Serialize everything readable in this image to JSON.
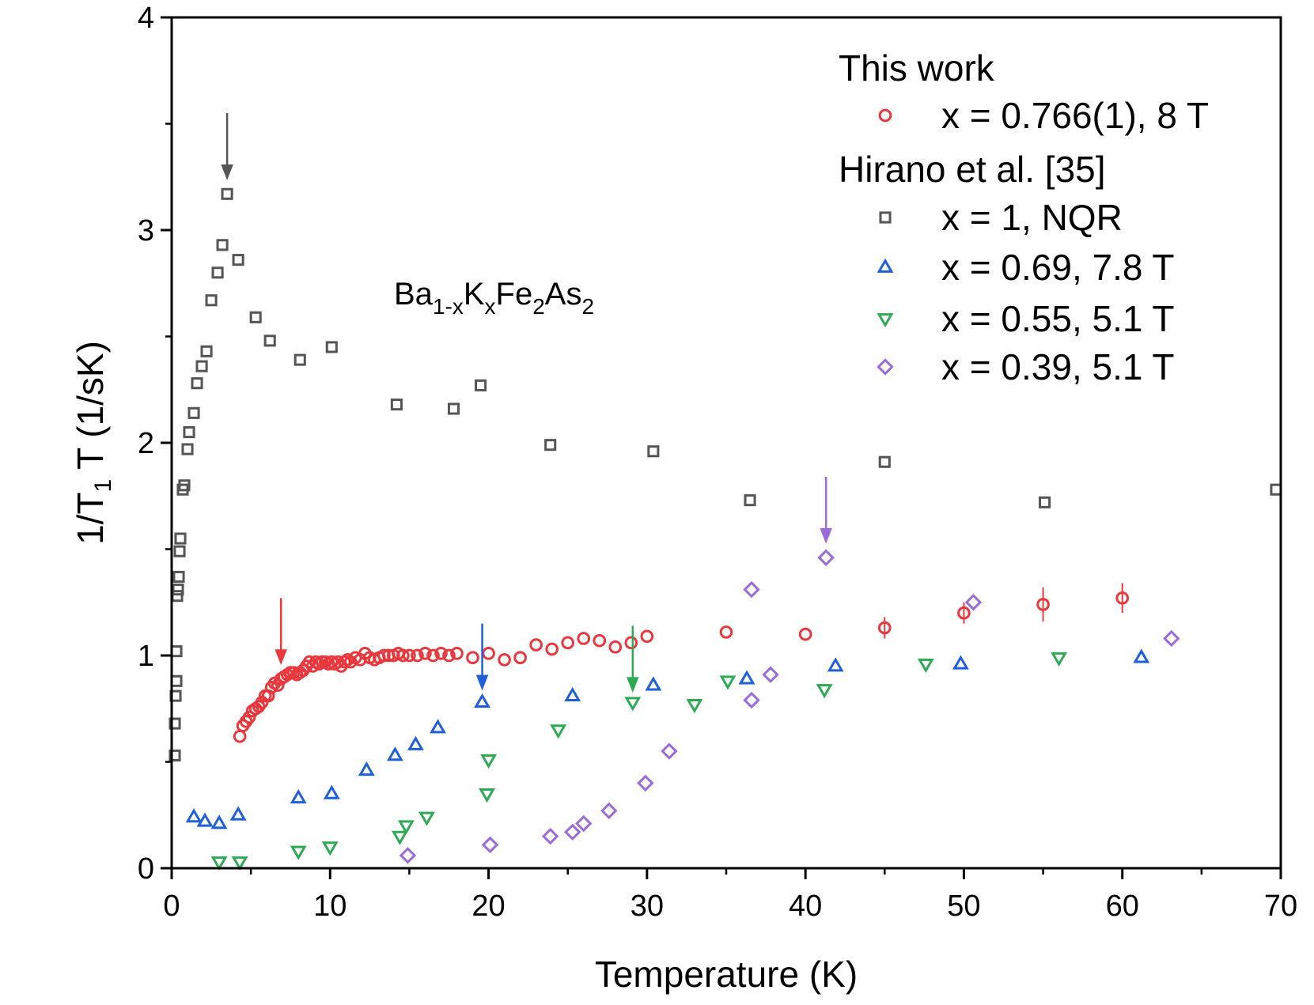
{
  "chart_data": {
    "type": "scatter",
    "xlabel": "Temperature (K)",
    "ylabel_parts": [
      "1/T",
      "1",
      " T (1/sK)"
    ],
    "xlim": [
      0,
      70
    ],
    "ylim": [
      0,
      4
    ],
    "xticks": [
      0,
      10,
      20,
      30,
      40,
      50,
      60,
      70
    ],
    "yticks": [
      0,
      1,
      2,
      3,
      4
    ],
    "grid": false,
    "legend_placement": "top-right",
    "legend": {
      "group1_title": "This work",
      "group2_title": "Hirano et al. [35]"
    },
    "annotation_parts": [
      {
        "t": "Ba",
        "sub": false
      },
      {
        "t": "1-x",
        "sub": true
      },
      {
        "t": "K",
        "sub": false
      },
      {
        "t": "x",
        "sub": true
      },
      {
        "t": "Fe",
        "sub": false
      },
      {
        "t": "2",
        "sub": true
      },
      {
        "t": "As",
        "sub": false
      },
      {
        "t": "2",
        "sub": true
      }
    ],
    "series": [
      {
        "name": "x = 0.766(1), 8 T",
        "marker": "circle",
        "color": "#e8383d",
        "points": [
          [
            4.3,
            0.62
          ],
          [
            4.5,
            0.67
          ],
          [
            4.7,
            0.69
          ],
          [
            4.9,
            0.71
          ],
          [
            5.1,
            0.74
          ],
          [
            5.3,
            0.75
          ],
          [
            5.5,
            0.76
          ],
          [
            5.7,
            0.78
          ],
          [
            5.9,
            0.81
          ],
          [
            6.1,
            0.81
          ],
          [
            6.3,
            0.85
          ],
          [
            6.5,
            0.87
          ],
          [
            6.7,
            0.86
          ],
          [
            6.9,
            0.89
          ],
          [
            7.1,
            0.9
          ],
          [
            7.3,
            0.91
          ],
          [
            7.5,
            0.92
          ],
          [
            7.7,
            0.92
          ],
          [
            7.9,
            0.91
          ],
          [
            8.1,
            0.92
          ],
          [
            8.3,
            0.93
          ],
          [
            8.5,
            0.95
          ],
          [
            8.7,
            0.97
          ],
          [
            8.9,
            0.95
          ],
          [
            9.1,
            0.97
          ],
          [
            9.3,
            0.96
          ],
          [
            9.5,
            0.97
          ],
          [
            9.7,
            0.97
          ],
          [
            9.9,
            0.96
          ],
          [
            10.1,
            0.97
          ],
          [
            10.3,
            0.96
          ],
          [
            10.5,
            0.97
          ],
          [
            10.7,
            0.95
          ],
          [
            10.9,
            0.97
          ],
          [
            11.1,
            0.98
          ],
          [
            11.3,
            0.97
          ],
          [
            11.6,
            0.99
          ],
          [
            11.9,
            0.98
          ],
          [
            12.2,
            1.01
          ],
          [
            12.5,
            0.99
          ],
          [
            12.8,
            0.98
          ],
          [
            13.1,
            0.99
          ],
          [
            13.4,
            1.0
          ],
          [
            13.7,
            1.0
          ],
          [
            14.0,
            1.0
          ],
          [
            14.3,
            1.01
          ],
          [
            14.6,
            1.0
          ],
          [
            15.0,
            1.0
          ],
          [
            15.5,
            1.0
          ],
          [
            16.0,
            1.01
          ],
          [
            16.5,
            1.0
          ],
          [
            17.0,
            1.01
          ],
          [
            17.5,
            1.0
          ],
          [
            18.0,
            1.01
          ],
          [
            19.0,
            0.99
          ],
          [
            20.0,
            1.01
          ],
          [
            21.0,
            0.98
          ],
          [
            22.0,
            0.99
          ],
          [
            23.0,
            1.05
          ],
          [
            24.0,
            1.03
          ],
          [
            25.0,
            1.06
          ],
          [
            26.0,
            1.08
          ],
          [
            27.0,
            1.07
          ],
          [
            28.0,
            1.04
          ],
          [
            29.0,
            1.06
          ],
          [
            30.0,
            1.09
          ],
          [
            35.0,
            1.11
          ],
          [
            40.0,
            1.1
          ],
          [
            45.0,
            1.13
          ],
          [
            50.0,
            1.2
          ],
          [
            55.0,
            1.24
          ],
          [
            60.0,
            1.27
          ]
        ]
      },
      {
        "name": "x = 1, NQR",
        "marker": "square",
        "color": "#555555",
        "points": [
          [
            0.2,
            0.53
          ],
          [
            0.2,
            0.68
          ],
          [
            0.25,
            0.81
          ],
          [
            0.3,
            0.88
          ],
          [
            0.3,
            1.02
          ],
          [
            0.35,
            1.28
          ],
          [
            0.4,
            1.31
          ],
          [
            0.45,
            1.37
          ],
          [
            0.5,
            1.49
          ],
          [
            0.55,
            1.55
          ],
          [
            0.7,
            1.78
          ],
          [
            0.8,
            1.8
          ],
          [
            1.0,
            1.97
          ],
          [
            1.1,
            2.05
          ],
          [
            1.4,
            2.14
          ],
          [
            1.6,
            2.28
          ],
          [
            1.9,
            2.36
          ],
          [
            2.2,
            2.43
          ],
          [
            2.5,
            2.67
          ],
          [
            2.9,
            2.8
          ],
          [
            3.2,
            2.93
          ],
          [
            3.5,
            3.17
          ],
          [
            4.2,
            2.86
          ],
          [
            5.3,
            2.59
          ],
          [
            6.2,
            2.48
          ],
          [
            8.1,
            2.39
          ],
          [
            10.1,
            2.45
          ],
          [
            14.2,
            2.18
          ],
          [
            17.8,
            2.16
          ],
          [
            19.5,
            2.27
          ],
          [
            23.9,
            1.99
          ],
          [
            30.4,
            1.96
          ],
          [
            36.5,
            1.73
          ],
          [
            45.0,
            1.91
          ],
          [
            55.1,
            1.72
          ],
          [
            69.7,
            1.78
          ]
        ]
      },
      {
        "name": "x = 0.69, 7.8 T",
        "marker": "triangle-up",
        "color": "#1f5fd8",
        "points": [
          [
            1.4,
            0.24
          ],
          [
            2.1,
            0.22
          ],
          [
            3.0,
            0.21
          ],
          [
            4.2,
            0.25
          ],
          [
            8.0,
            0.33
          ],
          [
            10.1,
            0.35
          ],
          [
            12.3,
            0.46
          ],
          [
            14.1,
            0.53
          ],
          [
            15.4,
            0.58
          ],
          [
            16.8,
            0.66
          ],
          [
            19.6,
            0.78
          ],
          [
            25.3,
            0.81
          ],
          [
            30.4,
            0.86
          ],
          [
            36.3,
            0.89
          ],
          [
            41.9,
            0.95
          ],
          [
            49.8,
            0.96
          ],
          [
            61.2,
            0.99
          ]
        ]
      },
      {
        "name": "x = 0.55, 5.1 T",
        "marker": "triangle-down",
        "color": "#2eaa55",
        "points": [
          [
            3.0,
            0.03
          ],
          [
            4.3,
            0.03
          ],
          [
            8.0,
            0.08
          ],
          [
            10.0,
            0.1
          ],
          [
            14.4,
            0.15
          ],
          [
            14.8,
            0.2
          ],
          [
            16.1,
            0.24
          ],
          [
            19.9,
            0.35
          ],
          [
            20.0,
            0.51
          ],
          [
            24.4,
            0.65
          ],
          [
            29.1,
            0.78
          ],
          [
            33.0,
            0.77
          ],
          [
            35.1,
            0.88
          ],
          [
            41.2,
            0.84
          ],
          [
            47.6,
            0.96
          ],
          [
            56.0,
            0.99
          ]
        ]
      },
      {
        "name": "x = 0.39, 5.1 T",
        "marker": "diamond",
        "color": "#9b6bd9",
        "points": [
          [
            14.9,
            0.06
          ],
          [
            20.1,
            0.11
          ],
          [
            23.9,
            0.15
          ],
          [
            25.3,
            0.17
          ],
          [
            26.0,
            0.21
          ],
          [
            27.6,
            0.27
          ],
          [
            29.9,
            0.4
          ],
          [
            31.4,
            0.55
          ],
          [
            36.6,
            0.79
          ],
          [
            36.6,
            1.31
          ],
          [
            37.8,
            0.91
          ],
          [
            41.3,
            1.46
          ],
          [
            50.6,
            1.25
          ],
          [
            63.1,
            1.08
          ]
        ]
      }
    ],
    "error_bars": [
      {
        "x": 45.0,
        "y": 1.13,
        "err": 0.05
      },
      {
        "x": 50.0,
        "y": 1.2,
        "err": 0.05
      },
      {
        "x": 55.0,
        "y": 1.24,
        "err": 0.08
      },
      {
        "x": 60.0,
        "y": 1.27,
        "err": 0.07
      }
    ],
    "arrows": [
      {
        "series": "x = 1, NQR",
        "x": 3.5,
        "y_from": 3.55,
        "y_to": 3.24,
        "color": "#555555"
      },
      {
        "series": "x = 0.766(1), 8 T",
        "x": 6.9,
        "y_from": 1.27,
        "y_to": 0.96,
        "color": "#e8383d"
      },
      {
        "series": "x = 0.69, 7.8 T",
        "x": 19.6,
        "y_from": 1.15,
        "y_to": 0.84,
        "color": "#1f5fd8"
      },
      {
        "series": "x = 0.55, 5.1 T",
        "x": 29.1,
        "y_from": 1.14,
        "y_to": 0.83,
        "color": "#2eaa55"
      },
      {
        "series": "x = 0.39, 5.1 T",
        "x": 41.3,
        "y_from": 1.84,
        "y_to": 1.53,
        "color": "#9b6bd9"
      }
    ]
  }
}
